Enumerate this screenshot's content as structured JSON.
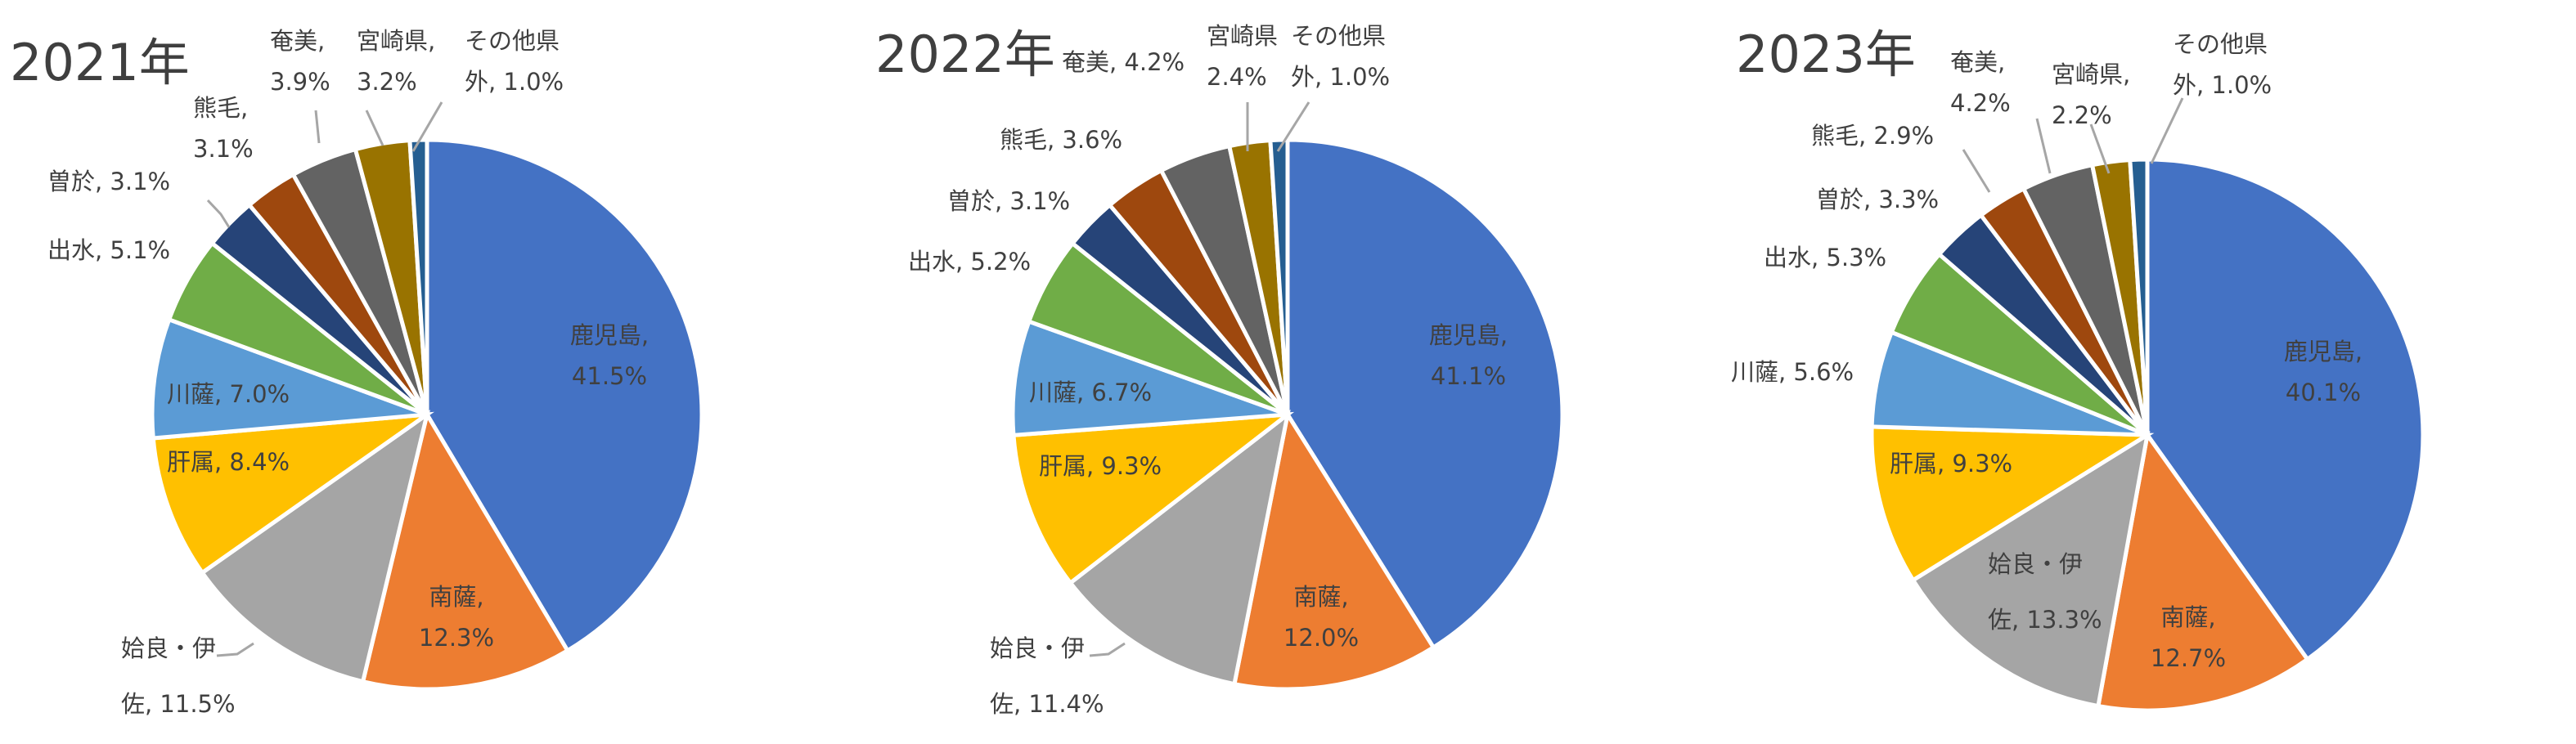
{
  "chart_data": [
    {
      "type": "pie",
      "title": "2021年",
      "slices": [
        {
          "name": "鹿児島",
          "value": 41.5,
          "label": [
            "鹿児島,",
            "41.5%"
          ],
          "color": "#4472C4"
        },
        {
          "name": "南薩",
          "value": 12.3,
          "label": [
            "南薩,",
            "12.3%"
          ],
          "color": "#ED7D31"
        },
        {
          "name": "姶良・伊佐",
          "value": 11.5,
          "label": [
            "姶良・伊",
            "佐, 11.5%"
          ],
          "color": "#A5A5A5"
        },
        {
          "name": "肝属",
          "value": 8.4,
          "label": [
            "肝属, 8.4%"
          ],
          "color": "#FFC000"
        },
        {
          "name": "川薩",
          "value": 7.0,
          "label": [
            "川薩, 7.0%"
          ],
          "color": "#5B9BD5"
        },
        {
          "name": "出水",
          "value": 5.1,
          "label": [
            "出水, 5.1%"
          ],
          "color": "#70AD47"
        },
        {
          "name": "曽於",
          "value": 3.1,
          "label": [
            "曽於, 3.1%"
          ],
          "color": "#264478"
        },
        {
          "name": "熊毛",
          "value": 3.1,
          "label": [
            "熊毛,",
            "3.1%"
          ],
          "color": "#9E480E"
        },
        {
          "name": "奄美",
          "value": 3.9,
          "label": [
            "奄美,",
            "3.9%"
          ],
          "color": "#636363"
        },
        {
          "name": "宮崎県",
          "value": 3.2,
          "label": [
            "宮崎県,",
            "3.2%"
          ],
          "color": "#997300"
        },
        {
          "name": "その他県外",
          "value": 1.0,
          "label": [
            "その他県",
            "外, 1.0%"
          ],
          "color": "#255E91"
        }
      ]
    },
    {
      "type": "pie",
      "title": "2022年",
      "slices": [
        {
          "name": "鹿児島",
          "value": 41.1,
          "label": [
            "鹿児島,",
            "41.1%"
          ],
          "color": "#4472C4"
        },
        {
          "name": "南薩",
          "value": 12.0,
          "label": [
            "南薩,",
            "12.0%"
          ],
          "color": "#ED7D31"
        },
        {
          "name": "姶良・伊佐",
          "value": 11.4,
          "label": [
            "姶良・伊",
            "佐, 11.4%"
          ],
          "color": "#A5A5A5"
        },
        {
          "name": "肝属",
          "value": 9.3,
          "label": [
            "肝属, 9.3%"
          ],
          "color": "#FFC000"
        },
        {
          "name": "川薩",
          "value": 6.7,
          "label": [
            "川薩, 6.7%"
          ],
          "color": "#5B9BD5"
        },
        {
          "name": "出水",
          "value": 5.2,
          "label": [
            "出水, 5.2%"
          ],
          "color": "#70AD47"
        },
        {
          "name": "曽於",
          "value": 3.1,
          "label": [
            "曽於, 3.1%"
          ],
          "color": "#264478"
        },
        {
          "name": "熊毛",
          "value": 3.6,
          "label": [
            "熊毛, 3.6%"
          ],
          "color": "#9E480E"
        },
        {
          "name": "奄美",
          "value": 4.2,
          "label": [
            "奄美, 4.2%"
          ],
          "color": "#636363"
        },
        {
          "name": "宮崎県",
          "value": 2.4,
          "label": [
            "宮崎県",
            "2.4%"
          ],
          "color": "#997300"
        },
        {
          "name": "その他県外",
          "value": 1.0,
          "label": [
            "その他県",
            "外, 1.0%"
          ],
          "color": "#255E91"
        }
      ]
    },
    {
      "type": "pie",
      "title": "2023年",
      "slices": [
        {
          "name": "鹿児島",
          "value": 40.1,
          "label": [
            "鹿児島,",
            "40.1%"
          ],
          "color": "#4472C4"
        },
        {
          "name": "南薩",
          "value": 12.7,
          "label": [
            "南薩,",
            "12.7%"
          ],
          "color": "#ED7D31"
        },
        {
          "name": "姶良・伊佐",
          "value": 13.3,
          "label": [
            "姶良・伊",
            "佐, 13.3%"
          ],
          "color": "#A5A5A5"
        },
        {
          "name": "肝属",
          "value": 9.3,
          "label": [
            "肝属, 9.3%"
          ],
          "color": "#FFC000"
        },
        {
          "name": "川薩",
          "value": 5.6,
          "label": [
            "川薩, 5.6%"
          ],
          "color": "#5B9BD5"
        },
        {
          "name": "出水",
          "value": 5.3,
          "label": [
            "出水, 5.3%"
          ],
          "color": "#70AD47"
        },
        {
          "name": "曽於",
          "value": 3.3,
          "label": [
            "曽於, 3.3%"
          ],
          "color": "#264478"
        },
        {
          "name": "熊毛",
          "value": 2.9,
          "label": [
            "熊毛, 2.9%"
          ],
          "color": "#9E480E"
        },
        {
          "name": "奄美",
          "value": 4.2,
          "label": [
            "奄美,",
            "4.2%"
          ],
          "color": "#636363"
        },
        {
          "name": "宮崎県",
          "value": 2.2,
          "label": [
            "宮崎県,",
            "2.2%"
          ],
          "color": "#997300"
        },
        {
          "name": "その他県外",
          "value": 1.0,
          "label": [
            "その他県",
            "外, 1.0%"
          ],
          "color": "#255E91"
        }
      ]
    }
  ]
}
